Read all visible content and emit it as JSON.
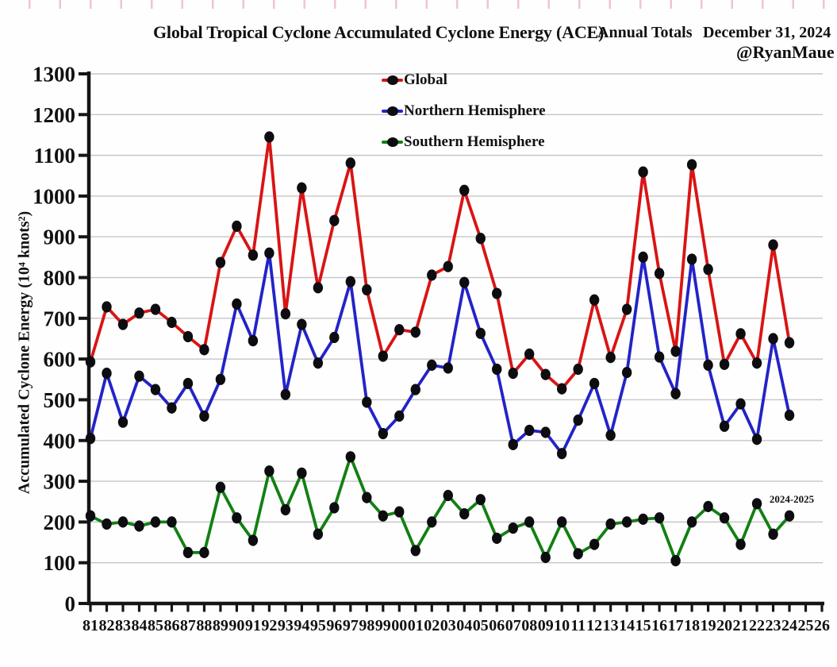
{
  "header": {
    "title": "Global Tropical Cyclone Accumulated Cyclone Energy (ACE)",
    "annual_totals": "Annual Totals",
    "date": "December 31, 2024",
    "handle": "@RyanMaue"
  },
  "y_axis": {
    "label": "Accumulated Cyclone Energy (10⁴ knots²)",
    "ticks": [
      0,
      100,
      200,
      300,
      400,
      500,
      600,
      700,
      800,
      900,
      1000,
      1100,
      1200,
      1300
    ]
  },
  "x_axis": {
    "ticks": [
      "81",
      "82",
      "83",
      "84",
      "85",
      "86",
      "87",
      "88",
      "89",
      "90",
      "91",
      "92",
      "93",
      "94",
      "95",
      "96",
      "97",
      "98",
      "99",
      "00",
      "01",
      "02",
      "03",
      "04",
      "05",
      "06",
      "07",
      "08",
      "09",
      "10",
      "11",
      "12",
      "13",
      "14",
      "15",
      "16",
      "17",
      "18",
      "19",
      "20",
      "21",
      "22",
      "23",
      "24",
      "25",
      "26"
    ]
  },
  "legend": {
    "items": [
      {
        "label": "Global",
        "color": "#d91414"
      },
      {
        "label": "Northern Hemisphere",
        "color": "#2323c8"
      },
      {
        "label": "Southern Hemisphere",
        "color": "#128012"
      }
    ]
  },
  "annotation": {
    "text": "2024-2025"
  },
  "colors": {
    "marker": "#0c0c11",
    "grid": "#c6c6c6",
    "axis": "#151515"
  },
  "chart_data": {
    "type": "line",
    "title": "Global Tropical Cyclone Accumulated Cyclone Energy (ACE) — Annual Totals",
    "ylabel": "Accumulated Cyclone Energy (10⁴ knots²)",
    "ylim": [
      0,
      1300
    ],
    "grid": true,
    "legend_position": "top-center",
    "marker": {
      "shape": "ellipse",
      "color": "#0c0c11"
    },
    "x": [
      "81",
      "82",
      "83",
      "84",
      "85",
      "86",
      "87",
      "88",
      "89",
      "90",
      "91",
      "92",
      "93",
      "94",
      "95",
      "96",
      "97",
      "98",
      "99",
      "00",
      "01",
      "02",
      "03",
      "04",
      "05",
      "06",
      "07",
      "08",
      "09",
      "10",
      "11",
      "12",
      "13",
      "14",
      "15",
      "16",
      "17",
      "18",
      "19",
      "20",
      "21",
      "22",
      "23",
      "24"
    ],
    "series": [
      {
        "name": "Global",
        "color": "#d91414",
        "values": [
          593,
          728,
          685,
          713,
          722,
          690,
          655,
          623,
          837,
          926,
          855,
          1145,
          711,
          1020,
          775,
          940,
          1081,
          770,
          607,
          672,
          666,
          806,
          827,
          1014,
          896,
          761,
          565,
          612,
          562,
          527,
          575,
          745,
          604,
          722,
          1059,
          810,
          619,
          1077,
          820,
          587,
          662,
          590,
          880,
          640
        ]
      },
      {
        "name": "Northern Hemisphere",
        "color": "#2323c8",
        "values": [
          405,
          565,
          445,
          558,
          525,
          480,
          540,
          460,
          550,
          735,
          645,
          860,
          513,
          685,
          590,
          653,
          790,
          494,
          417,
          460,
          525,
          585,
          578,
          788,
          663,
          575,
          390,
          425,
          420,
          368,
          450,
          540,
          413,
          567,
          850,
          605,
          515,
          845,
          585,
          435,
          490,
          403,
          650,
          462
        ]
      },
      {
        "name": "Southern Hemisphere",
        "color": "#128012",
        "values": [
          215,
          195,
          200,
          190,
          200,
          200,
          125,
          125,
          285,
          210,
          155,
          325,
          230,
          320,
          170,
          235,
          360,
          260,
          215,
          225,
          130,
          200,
          265,
          220,
          255,
          160,
          185,
          200,
          113,
          200,
          122,
          145,
          195,
          200,
          207,
          210,
          105,
          200,
          238,
          210,
          145,
          245,
          170,
          215
        ]
      }
    ]
  }
}
